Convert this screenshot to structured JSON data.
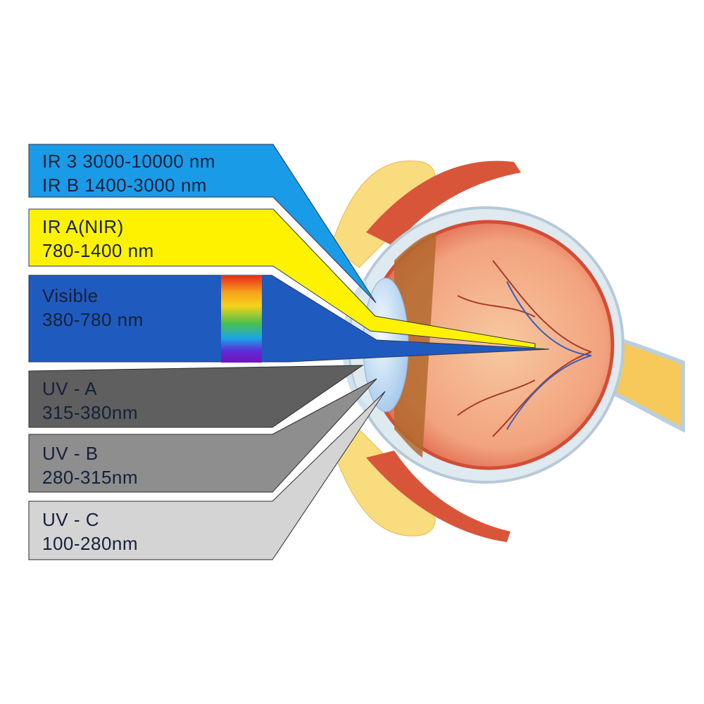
{
  "bands": [
    {
      "id": "ir-b-c",
      "lines": [
        "IR 3 3000-10000 nm",
        "IR B 1400-3000 nm"
      ],
      "color": "#1a9be8"
    },
    {
      "id": "ir-a",
      "lines": [
        "IR A(NIR)",
        "780-1400 nm"
      ],
      "color": "#fff200"
    },
    {
      "id": "visible",
      "lines": [
        "Visible",
        "380-780 nm"
      ],
      "color": "#1f5bbf"
    },
    {
      "id": "uv-a",
      "lines": [
        "UV - A",
        "315-380nm"
      ],
      "color": "#5f5f5f"
    },
    {
      "id": "uv-b",
      "lines": [
        "UV - B",
        "280-315nm"
      ],
      "color": "#8e8e8e"
    },
    {
      "id": "uv-c",
      "lines": [
        "UV - C",
        "100-280nm"
      ],
      "color": "#d4d4d4"
    }
  ],
  "spectrum_colors": [
    "#e8281e",
    "#f7a21b",
    "#f5d21a",
    "#4cc04c",
    "#1aa6e8",
    "#5a2fd8",
    "#7a10b8"
  ]
}
